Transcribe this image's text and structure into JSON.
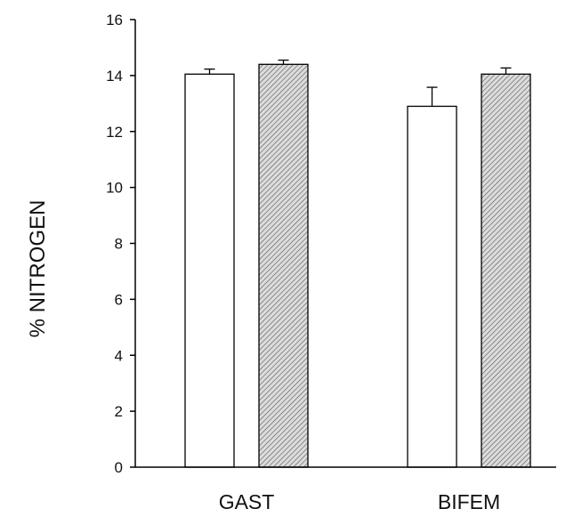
{
  "chart_data": {
    "type": "bar",
    "title": "",
    "xlabel": "",
    "ylabel": "% NITROGEN",
    "categories": [
      "GAST",
      "BIFEM"
    ],
    "series": [
      {
        "values": [
          14.05,
          12.9
        ],
        "errors": [
          0.18,
          0.68
        ],
        "color": "#ffffff",
        "pattern": "none"
      },
      {
        "values": [
          14.4,
          14.05
        ],
        "errors": [
          0.15,
          0.22
        ],
        "color": "#d8d8d8",
        "pattern": "diagonal-hatch"
      }
    ],
    "ylim": [
      0,
      16
    ],
    "yticks": [
      "0",
      "2",
      "4",
      "6",
      "8",
      "10",
      "12",
      "14",
      "16"
    ],
    "grid": false,
    "legend": "none"
  }
}
